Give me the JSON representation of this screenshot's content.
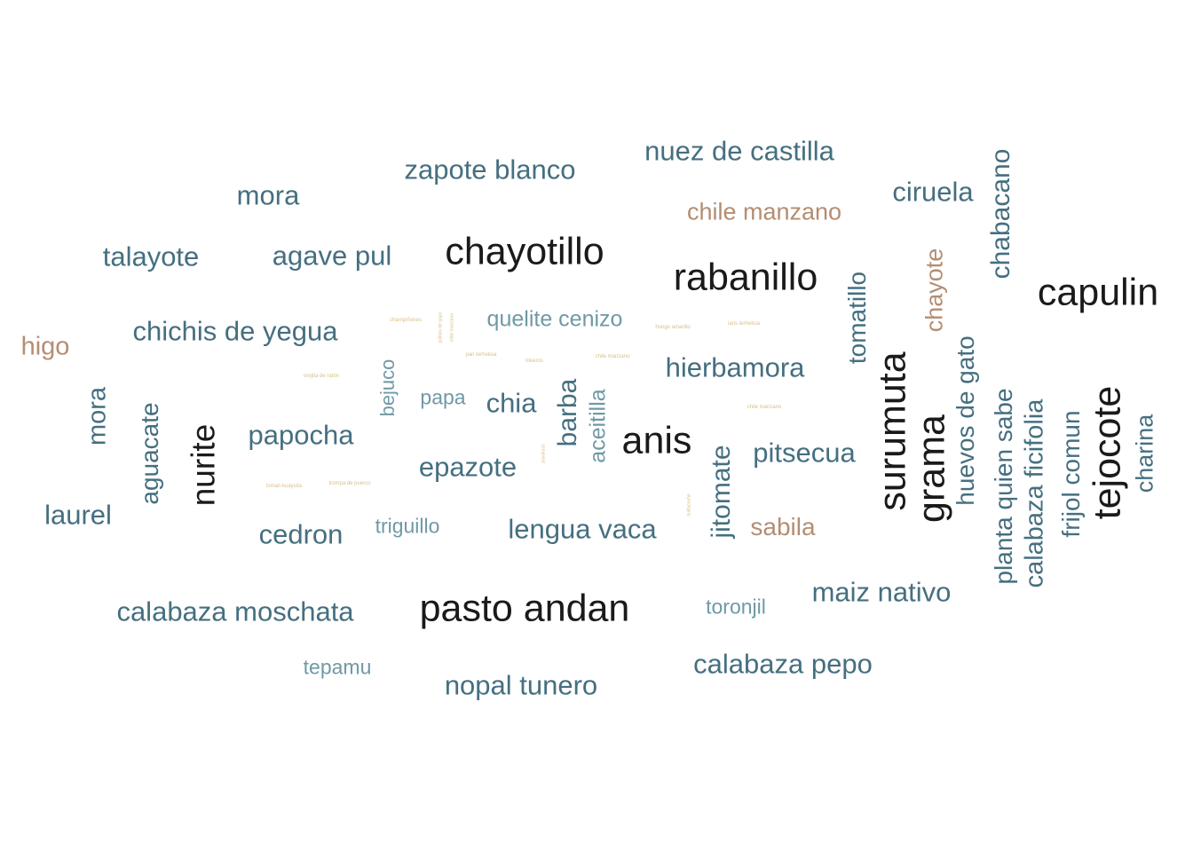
{
  "palette": {
    "black": "#1a1a1a",
    "teal": "#456f80",
    "teal_light": "#6f99a6",
    "tan": "#b48d72",
    "gold": "#d9c08a"
  },
  "words": [
    {
      "text": "zapote blanco",
      "color": "teal",
      "vertical": false
    },
    {
      "text": "nuez de castilla",
      "color": "teal",
      "vertical": false
    },
    {
      "text": "mora",
      "color": "teal",
      "vertical": false
    },
    {
      "text": "chile manzano",
      "color": "tan",
      "vertical": false
    },
    {
      "text": "ciruela",
      "color": "teal",
      "vertical": false
    },
    {
      "text": "chabacano",
      "color": "teal",
      "vertical": true
    },
    {
      "text": "talayote",
      "color": "teal",
      "vertical": false
    },
    {
      "text": "agave pul",
      "color": "teal",
      "vertical": false
    },
    {
      "text": "chayotillo",
      "color": "black",
      "vertical": false
    },
    {
      "text": "rabanillo",
      "color": "black",
      "vertical": false
    },
    {
      "text": "capulin",
      "color": "black",
      "vertical": false
    },
    {
      "text": "chayote",
      "color": "tan",
      "vertical": true
    },
    {
      "text": "tomatillo",
      "color": "teal",
      "vertical": true
    },
    {
      "text": "chichis de yegua",
      "color": "teal",
      "vertical": false
    },
    {
      "text": "quelite cenizo",
      "color": "teal_light",
      "vertical": false
    },
    {
      "text": "higo",
      "color": "tan",
      "vertical": false
    },
    {
      "text": "hierbamora",
      "color": "teal",
      "vertical": false
    },
    {
      "text": "surumuta",
      "color": "black",
      "vertical": true
    },
    {
      "text": "huevos de gato",
      "color": "teal",
      "vertical": true
    },
    {
      "text": "grama",
      "color": "black",
      "vertical": true
    },
    {
      "text": "planta quien sabe",
      "color": "teal",
      "vertical": true
    },
    {
      "text": "calabaza ficifolia",
      "color": "teal",
      "vertical": true
    },
    {
      "text": "frijol comun",
      "color": "teal",
      "vertical": true
    },
    {
      "text": "tejocote",
      "color": "black",
      "vertical": true
    },
    {
      "text": "charina",
      "color": "teal",
      "vertical": true
    },
    {
      "text": "mora",
      "color": "teal",
      "vertical": true
    },
    {
      "text": "aguacate",
      "color": "teal",
      "vertical": true
    },
    {
      "text": "nurite",
      "color": "black",
      "vertical": true
    },
    {
      "text": "papocha",
      "color": "teal",
      "vertical": false
    },
    {
      "text": "bejuco",
      "color": "teal_light",
      "vertical": true
    },
    {
      "text": "papa",
      "color": "teal_light",
      "vertical": false
    },
    {
      "text": "chia",
      "color": "teal",
      "vertical": false
    },
    {
      "text": "barba",
      "color": "teal",
      "vertical": true
    },
    {
      "text": "aceitilla",
      "color": "teal_light",
      "vertical": true
    },
    {
      "text": "anis",
      "color": "black",
      "vertical": false
    },
    {
      "text": "pitsecua",
      "color": "teal",
      "vertical": false
    },
    {
      "text": "epazote",
      "color": "teal",
      "vertical": false
    },
    {
      "text": "jitomate",
      "color": "teal",
      "vertical": true
    },
    {
      "text": "laurel",
      "color": "teal",
      "vertical": false
    },
    {
      "text": "cedron",
      "color": "teal",
      "vertical": false
    },
    {
      "text": "triguillo",
      "color": "teal_light",
      "vertical": false
    },
    {
      "text": "lengua vaca",
      "color": "teal",
      "vertical": false
    },
    {
      "text": "sabila",
      "color": "tan",
      "vertical": false
    },
    {
      "text": "maiz nativo",
      "color": "teal",
      "vertical": false
    },
    {
      "text": "calabaza moschata",
      "color": "teal",
      "vertical": false
    },
    {
      "text": "pasto andan",
      "color": "black",
      "vertical": false
    },
    {
      "text": "toronjil",
      "color": "teal_light",
      "vertical": false
    },
    {
      "text": "calabaza pepo",
      "color": "teal",
      "vertical": false
    },
    {
      "text": "tepamu",
      "color": "teal_light",
      "vertical": false
    },
    {
      "text": "nopal tunero",
      "color": "teal",
      "vertical": false
    },
    {
      "text": "champiñones",
      "color": "gold",
      "vertical": false
    },
    {
      "text": "pollitos de pojor",
      "color": "gold",
      "vertical": true
    },
    {
      "text": "chile manzano",
      "color": "gold",
      "vertical": true
    },
    {
      "text": "pan terhekua",
      "color": "gold",
      "vertical": false
    },
    {
      "text": "hongo amarillo",
      "color": "gold",
      "vertical": false
    },
    {
      "text": "iaris terhekua",
      "color": "gold",
      "vertical": false
    },
    {
      "text": "tokeros",
      "color": "gold",
      "vertical": false
    },
    {
      "text": "chile manzano",
      "color": "gold",
      "vertical": false
    },
    {
      "text": "orejita de ratón",
      "color": "gold",
      "vertical": false
    },
    {
      "text": "chile manzano",
      "color": "gold",
      "vertical": false
    },
    {
      "text": "poyokuas",
      "color": "gold",
      "vertical": true
    },
    {
      "text": "tsman kuaysita",
      "color": "gold",
      "vertical": false
    },
    {
      "text": "trompa de puerco",
      "color": "gold",
      "vertical": false
    },
    {
      "text": "huitlacoche",
      "color": "gold",
      "vertical": true
    }
  ]
}
